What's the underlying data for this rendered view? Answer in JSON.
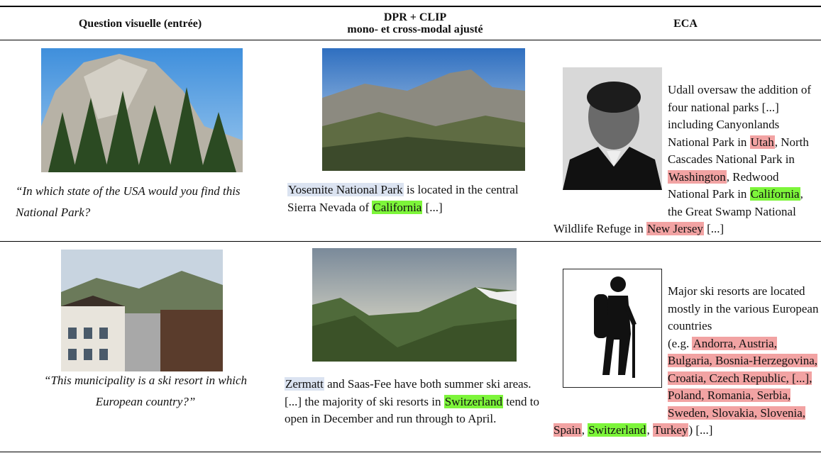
{
  "header": {
    "question": "Question visuelle (entrée)",
    "dpr": [
      "DPR + CLIP",
      "mono- et cross-modal ajusté"
    ],
    "eca": "ECA"
  },
  "rows": [
    {
      "question": "“In which state of the USA would you find this National Park?",
      "dpr": [
        {
          "text": "Yosemite National Park",
          "color": "#dbe3f1"
        },
        {
          "text": " is located in the central Sierra Nevada of "
        },
        {
          "text": "California",
          "color": "#7df53a"
        },
        {
          "text": " [...]"
        }
      ],
      "eca": [
        {
          "text": "Udall oversaw the addition of four national parks [...]\nincluding Canyonlands National Park in "
        },
        {
          "text": "Utah",
          "color": "#f2a3a3"
        },
        {
          "text": ", North Cascades National Park in "
        },
        {
          "text": "Washington",
          "color": "#f2a3a3"
        },
        {
          "text": ", Redwood National Park in "
        },
        {
          "text": "California",
          "color": "#7df53a"
        },
        {
          "text": ", the Great Swamp National Wildlife Refuge in "
        },
        {
          "text": "New Jersey",
          "color": "#f2a3a3"
        },
        {
          "text": " [...]"
        }
      ]
    },
    {
      "question": "“This municipality is a ski resort in which European country?”",
      "dpr": [
        {
          "text": "Zermatt",
          "color": "#dbe3f1"
        },
        {
          "text": " and Saas-Fee have both summer ski areas. [...] the majority of ski resorts in "
        },
        {
          "text": "Switzerland",
          "color": "#7df53a"
        },
        {
          "text": " tend to open in December and run through to April."
        }
      ],
      "eca": [
        {
          "text": "Major ski resorts are located mostly in the various European countries\n(e.g. "
        },
        {
          "text": "Andorra, Austria, Bulgaria, Bosnia-Herzegovina, Croatia, Czech Republic, [...], Poland, Romania, Serbia, Sweden, Slovakia, Slovenia, Spain",
          "color": "#f2a3a3"
        },
        {
          "text": ", "
        },
        {
          "text": "Switzerland",
          "color": "#7df53a"
        },
        {
          "text": ", "
        },
        {
          "text": "Turkey",
          "color": "#f2a3a3"
        },
        {
          "text": ") [...]"
        }
      ]
    }
  ]
}
